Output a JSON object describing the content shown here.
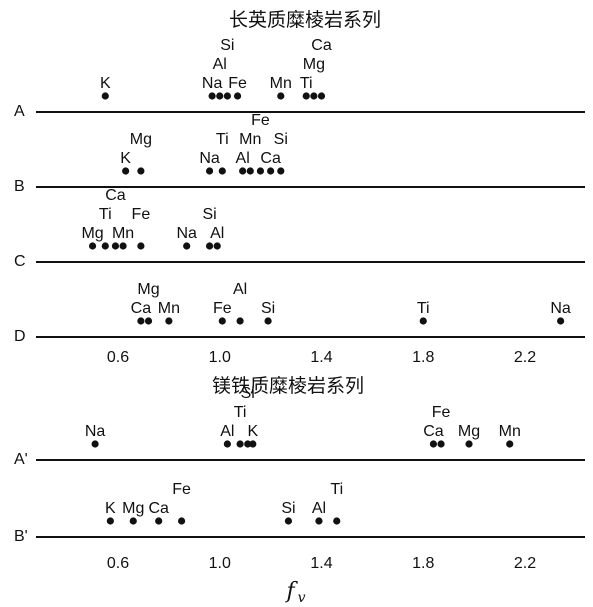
{
  "chart_data": {
    "type": "scatter",
    "xlabel": "f",
    "xlabel_sub": "v",
    "xticks": [
      "0.6",
      "1.0",
      "1.4",
      "1.8",
      "2.2"
    ],
    "xtick_values": [
      0.6,
      1.0,
      1.4,
      1.8,
      2.2
    ],
    "xlim": [
      0.28,
      2.4
    ],
    "panels": [
      {
        "title": "长英质糜棱岩系列",
        "rows": [
          {
            "label": "A",
            "points": [
              {
                "el": "K",
                "fv": 0.55
              },
              {
                "el": "Na",
                "fv": 0.97
              },
              {
                "el": "Al",
                "fv": 1.0
              },
              {
                "el": "Si",
                "fv": 1.03
              },
              {
                "el": "Fe",
                "fv": 1.07
              },
              {
                "el": "Mn",
                "fv": 1.24
              },
              {
                "el": "Ti",
                "fv": 1.34
              },
              {
                "el": "Mg",
                "fv": 1.37
              },
              {
                "el": "Ca",
                "fv": 1.4
              }
            ]
          },
          {
            "label": "B",
            "points": [
              {
                "el": "K",
                "fv": 0.63
              },
              {
                "el": "Mg",
                "fv": 0.69
              },
              {
                "el": "Na",
                "fv": 0.96
              },
              {
                "el": "Ti",
                "fv": 1.01
              },
              {
                "el": "Al",
                "fv": 1.09
              },
              {
                "el": "Mn",
                "fv": 1.12
              },
              {
                "el": "Fe",
                "fv": 1.16
              },
              {
                "el": "Ca",
                "fv": 1.2
              },
              {
                "el": "Si",
                "fv": 1.24
              }
            ]
          },
          {
            "label": "C",
            "points": [
              {
                "el": "Mg",
                "fv": 0.5
              },
              {
                "el": "Ti",
                "fv": 0.55
              },
              {
                "el": "Ca",
                "fv": 0.59
              },
              {
                "el": "Mn",
                "fv": 0.62
              },
              {
                "el": "Fe",
                "fv": 0.69
              },
              {
                "el": "Na",
                "fv": 0.87
              },
              {
                "el": "Si",
                "fv": 0.96
              },
              {
                "el": "Al",
                "fv": 0.99
              }
            ]
          },
          {
            "label": "D",
            "points": [
              {
                "el": "Ca",
                "fv": 0.69
              },
              {
                "el": "Mg",
                "fv": 0.72
              },
              {
                "el": "Mn",
                "fv": 0.8
              },
              {
                "el": "Fe",
                "fv": 1.01
              },
              {
                "el": "Al",
                "fv": 1.08
              },
              {
                "el": "Si",
                "fv": 1.19
              },
              {
                "el": "Ti",
                "fv": 1.8
              },
              {
                "el": "Na",
                "fv": 2.34
              }
            ]
          }
        ]
      },
      {
        "title": "镁铁质糜棱岩系列",
        "rows": [
          {
            "label": "A'",
            "points": [
              {
                "el": "Na",
                "fv": 0.51
              },
              {
                "el": "Al",
                "fv": 1.03
              },
              {
                "el": "Ti",
                "fv": 1.08
              },
              {
                "el": "Si",
                "fv": 1.11
              },
              {
                "el": "K",
                "fv": 1.13
              },
              {
                "el": "Ca",
                "fv": 1.84
              },
              {
                "el": "Fe",
                "fv": 1.87
              },
              {
                "el": "Mg",
                "fv": 1.98
              },
              {
                "el": "Mn",
                "fv": 2.14
              }
            ]
          },
          {
            "label": "B'",
            "points": [
              {
                "el": "K",
                "fv": 0.57
              },
              {
                "el": "Mg",
                "fv": 0.66
              },
              {
                "el": "Ca",
                "fv": 0.76
              },
              {
                "el": "Fe",
                "fv": 0.85
              },
              {
                "el": "Si",
                "fv": 1.27
              },
              {
                "el": "Al",
                "fv": 1.39
              },
              {
                "el": "Ti",
                "fv": 1.46
              }
            ]
          }
        ]
      }
    ]
  }
}
